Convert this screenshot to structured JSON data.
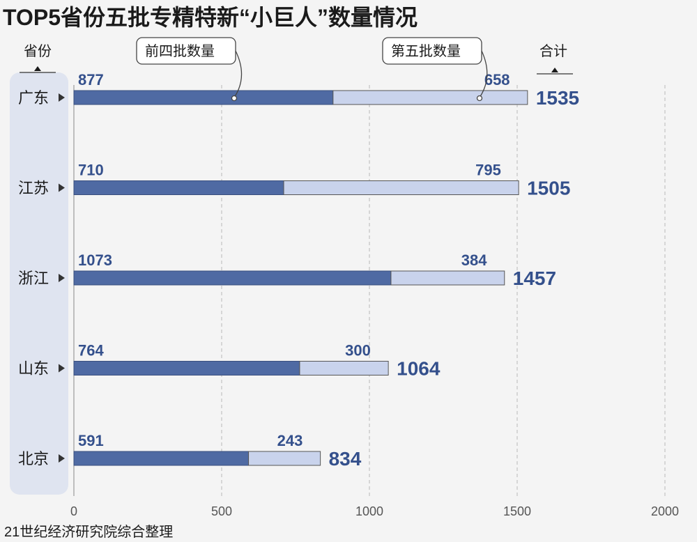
{
  "chart_data": {
    "type": "bar",
    "orientation": "horizontal",
    "stacked": true,
    "title": "TOP5省份五批专精特新“小巨人”数量情况",
    "categories": [
      "广东",
      "江苏",
      "浙江",
      "山东",
      "北京"
    ],
    "series": [
      {
        "name": "前四批数量",
        "values": [
          877,
          710,
          1073,
          764,
          591
        ],
        "color": "#4f6aa3"
      },
      {
        "name": "第五批数量",
        "values": [
          658,
          795,
          384,
          300,
          243
        ],
        "color": "#c9d3ec"
      }
    ],
    "totals": [
      1535,
      1505,
      1457,
      1064,
      834
    ],
    "xlim": [
      0,
      2000
    ],
    "xticks": [
      0,
      500,
      1000,
      1500,
      2000
    ],
    "grid": true,
    "category_header": "省份",
    "total_header": "合计",
    "source": "21世纪经济研究院综合整理"
  }
}
